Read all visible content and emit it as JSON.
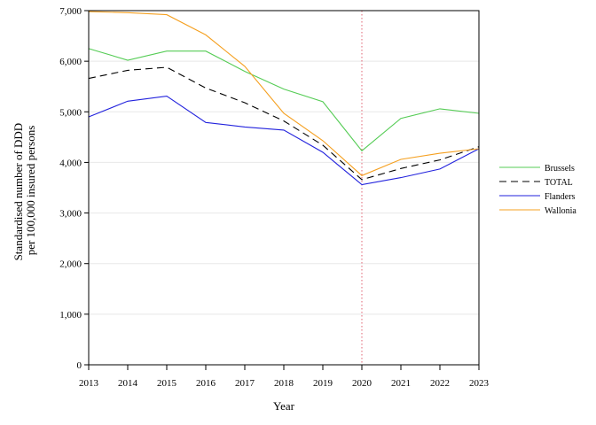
{
  "chart_data": {
    "type": "line",
    "title": "",
    "xlabel": "Year",
    "ylabel_lines": [
      "Standardised number of DDD",
      "per 100,000 insured persons"
    ],
    "x": [
      2013,
      2014,
      2015,
      2016,
      2017,
      2018,
      2019,
      2020,
      2021,
      2022,
      2023
    ],
    "x_tick_labels": [
      "2013",
      "2014",
      "2015",
      "2016",
      "2017",
      "2018",
      "2019",
      "2020",
      "2021",
      "2022",
      "2023"
    ],
    "ylim": [
      0,
      7000
    ],
    "y_ticks": [
      0,
      1000,
      2000,
      3000,
      4000,
      5000,
      6000,
      7000
    ],
    "y_tick_labels": [
      "0",
      "1,000",
      "2,000",
      "3,000",
      "4,000",
      "5,000",
      "6,000",
      "7,000"
    ],
    "grid": "horizontal",
    "reference_line_x": 2020,
    "reference_line_color": "#e06070",
    "legend_position": "right",
    "series": [
      {
        "name": "Brussels",
        "color": "#55cc55",
        "dash": "solid",
        "values": [
          6250,
          6020,
          6200,
          6200,
          5800,
          5450,
          5200,
          4230,
          4870,
          5060,
          4970
        ]
      },
      {
        "name": "TOTAL",
        "color": "#000000",
        "dash": "dashed",
        "values": [
          5660,
          5820,
          5880,
          5470,
          5180,
          4820,
          4340,
          3660,
          3880,
          4050,
          4310
        ]
      },
      {
        "name": "Flanders",
        "color": "#2222dd",
        "dash": "solid",
        "values": [
          4900,
          5210,
          5310,
          4790,
          4700,
          4640,
          4200,
          3560,
          3700,
          3870,
          4270
        ]
      },
      {
        "name": "Wallonia",
        "color": "#f5a020",
        "dash": "solid",
        "values": [
          6980,
          6960,
          6920,
          6520,
          5900,
          4970,
          4430,
          3740,
          4060,
          4180,
          4270
        ]
      }
    ]
  }
}
